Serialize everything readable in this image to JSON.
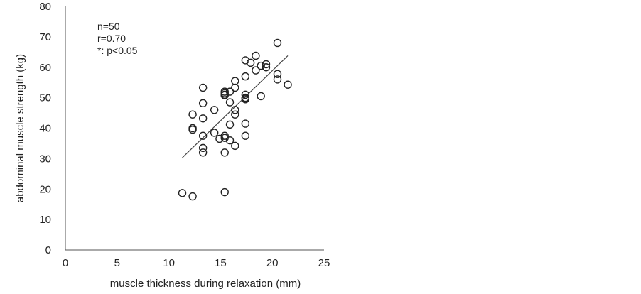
{
  "chart_data": {
    "type": "scatter",
    "xlabel": "muscle thickness during relaxation (mm)",
    "ylabel": "abdominal muscle strength (kg)",
    "xlim": [
      0,
      25
    ],
    "ylim": [
      0,
      80
    ],
    "x_ticks": [
      "0",
      "5",
      "10",
      "15",
      "20",
      "25"
    ],
    "y_ticks": [
      "0",
      "10",
      "20",
      "30",
      "40",
      "50",
      "60",
      "70",
      "80"
    ],
    "grid": false,
    "legend": "none",
    "annotations": [
      "n=50",
      "r=0.70",
      "*: p<0.05"
    ],
    "trendline": {
      "x": [
        11.3,
        21.5
      ],
      "y": [
        30.3,
        63.8
      ]
    },
    "points": [
      {
        "x": 11.3,
        "y": 18.7
      },
      {
        "x": 12.3,
        "y": 17.6
      },
      {
        "x": 15.4,
        "y": 19.0
      },
      {
        "x": 12.3,
        "y": 44.5
      },
      {
        "x": 12.3,
        "y": 39.5
      },
      {
        "x": 12.3,
        "y": 40.0
      },
      {
        "x": 13.3,
        "y": 53.3
      },
      {
        "x": 13.3,
        "y": 48.2
      },
      {
        "x": 13.3,
        "y": 43.2
      },
      {
        "x": 13.3,
        "y": 37.5
      },
      {
        "x": 13.3,
        "y": 33.5
      },
      {
        "x": 13.3,
        "y": 32.0
      },
      {
        "x": 14.4,
        "y": 46.0
      },
      {
        "x": 14.4,
        "y": 38.5
      },
      {
        "x": 14.9,
        "y": 36.5
      },
      {
        "x": 15.4,
        "y": 52.0
      },
      {
        "x": 15.4,
        "y": 51.5
      },
      {
        "x": 15.4,
        "y": 50.8
      },
      {
        "x": 15.4,
        "y": 37.5
      },
      {
        "x": 15.4,
        "y": 36.8
      },
      {
        "x": 15.4,
        "y": 32.0
      },
      {
        "x": 15.9,
        "y": 52.0
      },
      {
        "x": 15.9,
        "y": 48.5
      },
      {
        "x": 15.9,
        "y": 41.2
      },
      {
        "x": 15.9,
        "y": 36.0
      },
      {
        "x": 16.4,
        "y": 55.5
      },
      {
        "x": 16.4,
        "y": 53.3
      },
      {
        "x": 16.4,
        "y": 46.0
      },
      {
        "x": 16.4,
        "y": 44.5
      },
      {
        "x": 16.4,
        "y": 34.2
      },
      {
        "x": 17.4,
        "y": 62.3
      },
      {
        "x": 17.4,
        "y": 57.0
      },
      {
        "x": 17.4,
        "y": 51.0
      },
      {
        "x": 17.4,
        "y": 49.8
      },
      {
        "x": 17.4,
        "y": 49.5
      },
      {
        "x": 17.4,
        "y": 41.5
      },
      {
        "x": 17.4,
        "y": 37.5
      },
      {
        "x": 17.9,
        "y": 61.5
      },
      {
        "x": 18.4,
        "y": 63.8
      },
      {
        "x": 18.4,
        "y": 59.0
      },
      {
        "x": 18.9,
        "y": 60.5
      },
      {
        "x": 18.9,
        "y": 50.5
      },
      {
        "x": 19.4,
        "y": 61.0
      },
      {
        "x": 19.4,
        "y": 60.0
      },
      {
        "x": 20.5,
        "y": 68.0
      },
      {
        "x": 20.5,
        "y": 57.8
      },
      {
        "x": 20.5,
        "y": 56.0
      },
      {
        "x": 21.5,
        "y": 54.3
      },
      {
        "x": 17.4,
        "y": 50.0
      },
      {
        "x": 15.4,
        "y": 51.0
      }
    ]
  }
}
